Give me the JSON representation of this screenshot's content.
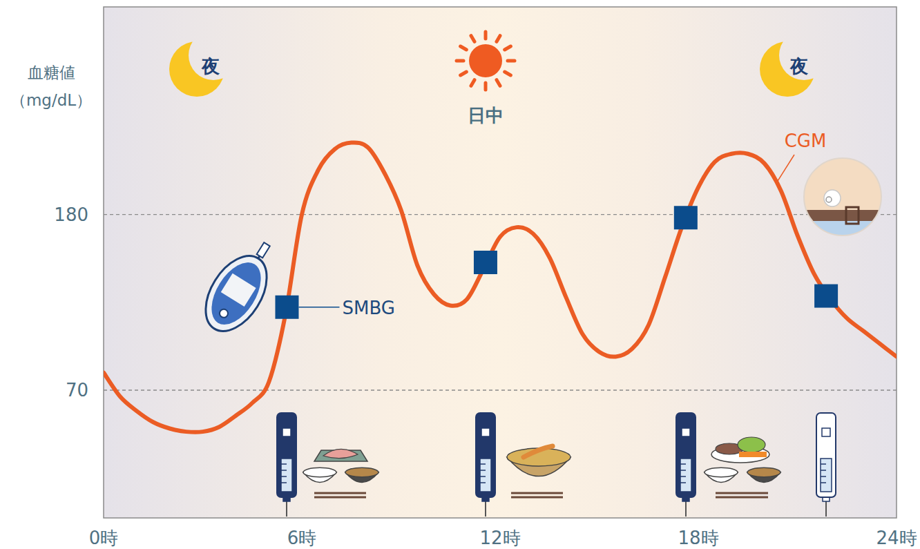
{
  "chart_data": {
    "type": "line",
    "ylabel": [
      "血糖値",
      "（mg/dL）"
    ],
    "xlim": [
      0,
      24
    ],
    "xticks": [
      {
        "value": 0,
        "label": "0時"
      },
      {
        "value": 6,
        "label": "6時"
      },
      {
        "value": 12,
        "label": "12時"
      },
      {
        "value": 18,
        "label": "18時"
      },
      {
        "value": 24,
        "label": "24時"
      }
    ],
    "ylim": [
      -10,
      310
    ],
    "yticks": [
      70,
      180
    ],
    "grid": true,
    "annotations": [
      "夜",
      "日中",
      "夜"
    ],
    "series": [
      {
        "name": "CGM",
        "color": "#eb5c24",
        "line_style": "solid",
        "x": [
          0,
          0.5,
          1,
          1.5,
          2,
          2.5,
          3,
          3.5,
          4,
          4.5,
          5,
          5.5,
          6,
          6.5,
          7,
          7.5,
          8,
          8.5,
          9,
          9.5,
          10,
          10.5,
          11,
          11.5,
          12,
          12.5,
          13,
          13.5,
          14,
          14.5,
          15,
          15.5,
          16,
          16.5,
          17,
          17.5,
          18,
          18.5,
          19,
          19.5,
          20,
          20.5,
          21,
          21.5,
          22,
          22.5,
          23,
          23.5,
          24
        ],
        "values": [
          81,
          66,
          57,
          50,
          46,
          44,
          44,
          47,
          54,
          62,
          75,
          117,
          180,
          208,
          221,
          225,
          222,
          206,
          183,
          148,
          130,
          123,
          127,
          146,
          166,
          172,
          168,
          153,
          128,
          105,
          94,
          91,
          96,
          111,
          141,
          172,
          197,
          213,
          218,
          218,
          212,
          195,
          167,
          143,
          127,
          115,
          107,
          99,
          91
        ]
      },
      {
        "name": "SMBG",
        "type": "scatter",
        "marker": "square",
        "color": "#0b4c8c",
        "x": [
          5.55,
          11.56,
          17.62,
          21.87
        ],
        "values": [
          122,
          150,
          178,
          129
        ]
      }
    ]
  }
}
